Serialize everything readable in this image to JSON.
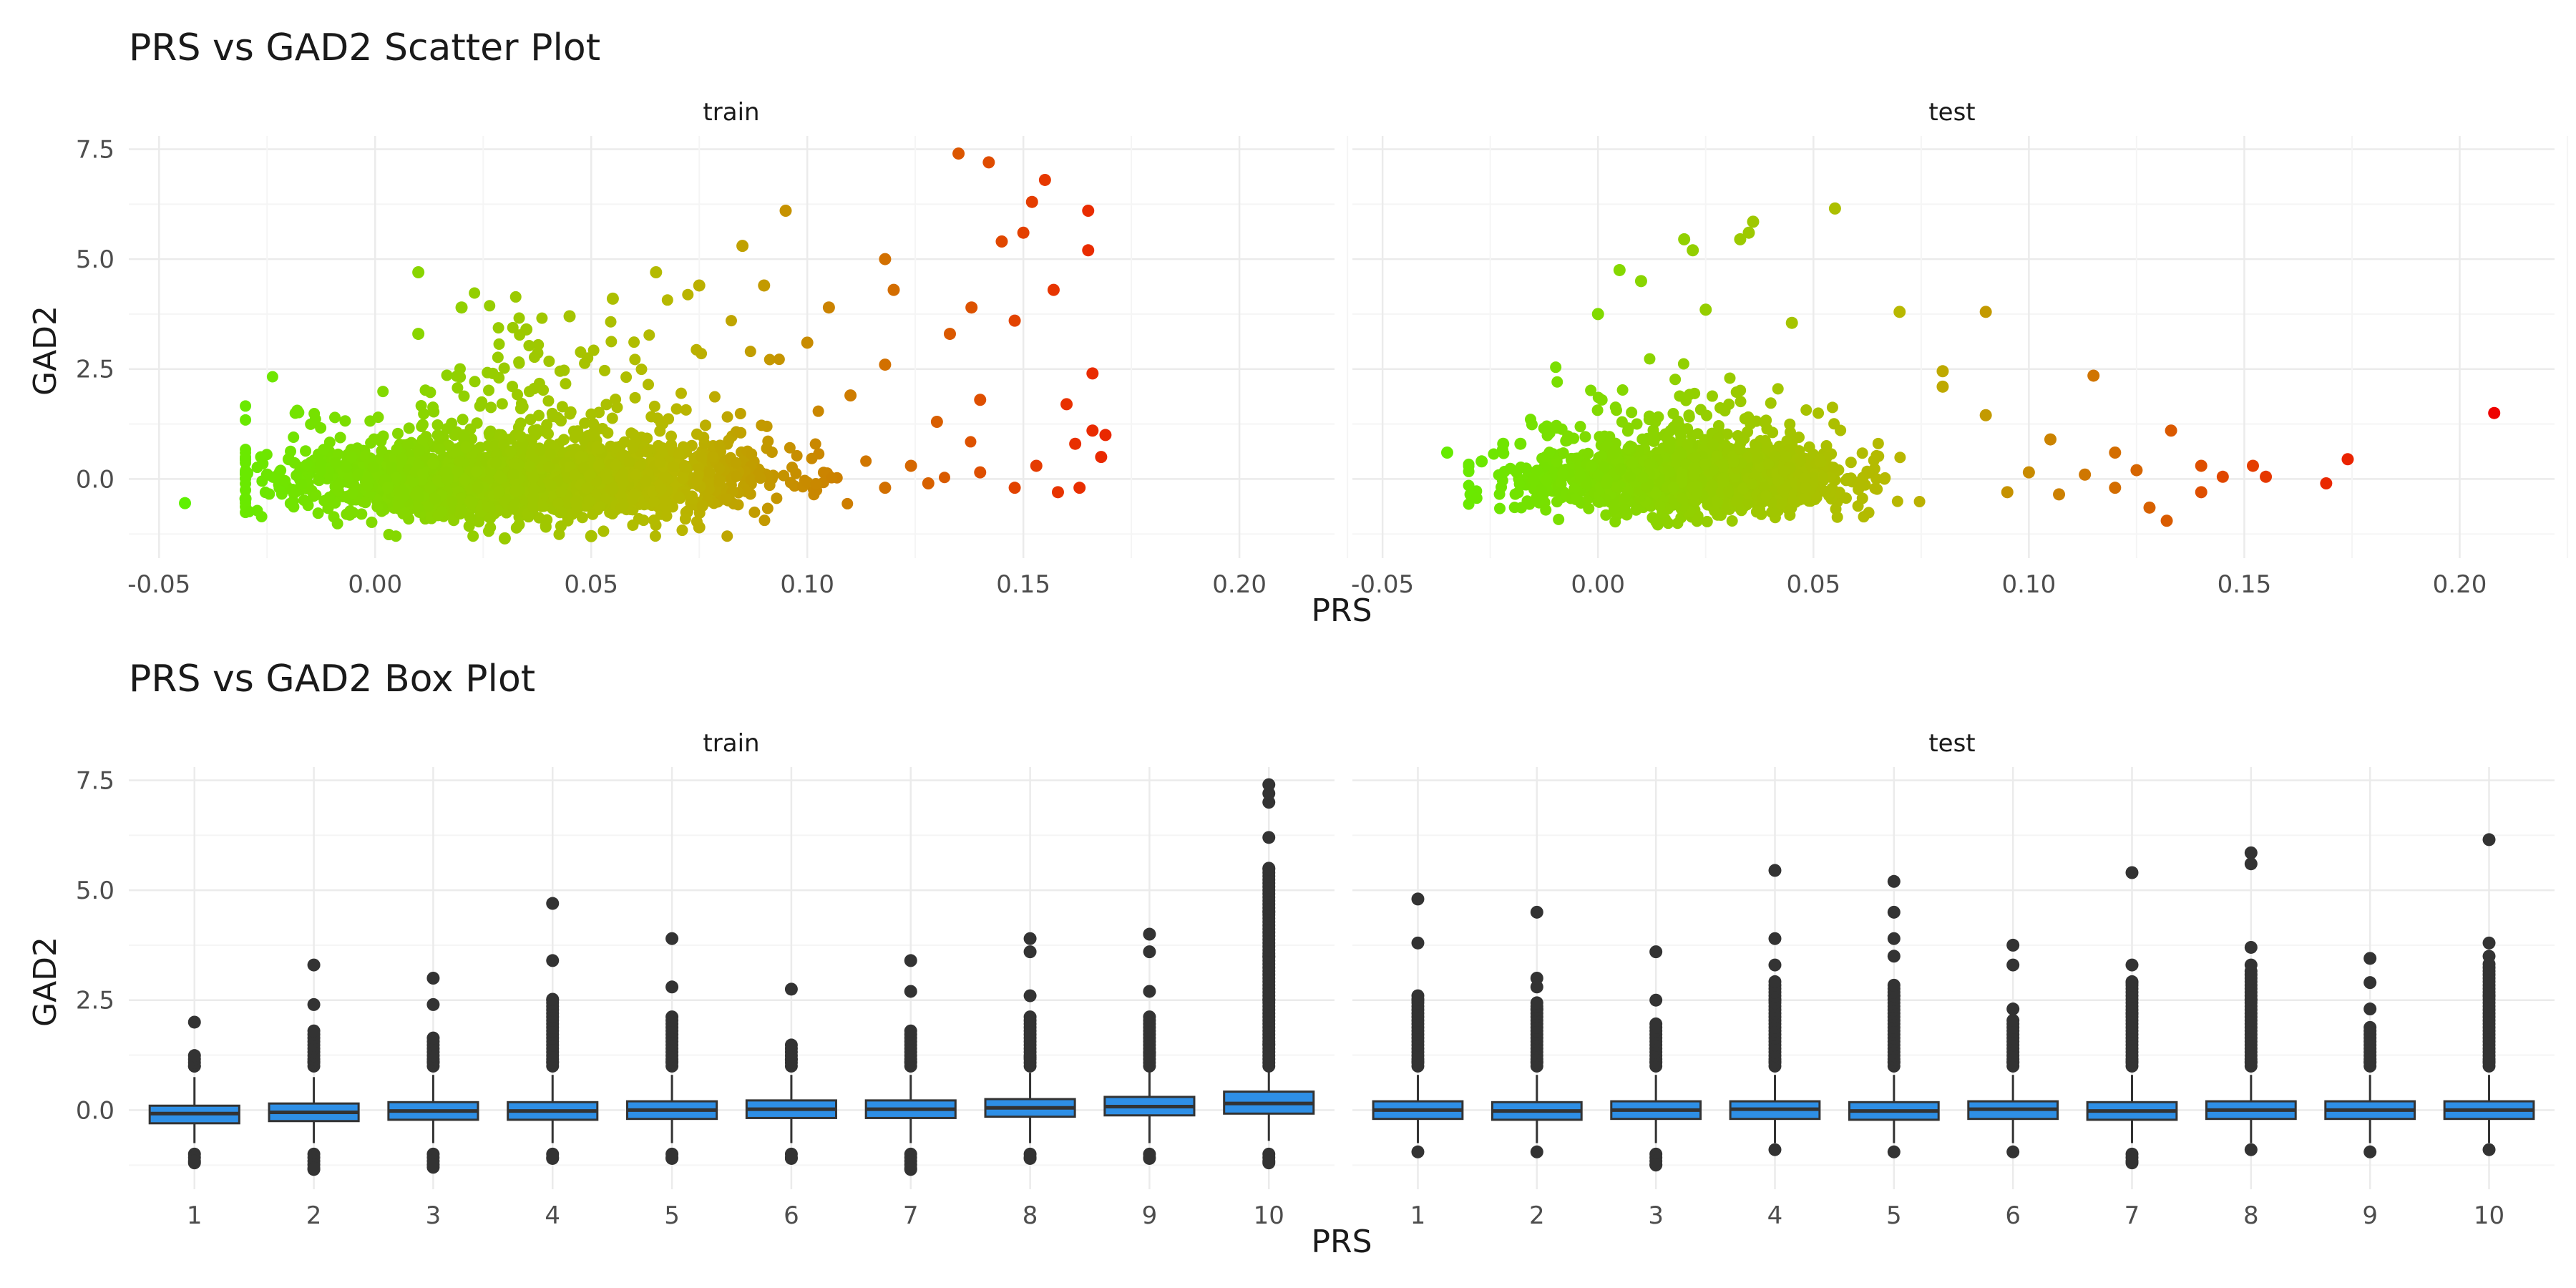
{
  "colors": {
    "background": "#ffffff",
    "grid_major": "#ebebeb",
    "grid_minor": "#f5f5f5",
    "axis_text": "#4d4d4d",
    "title_text": "#1a1a1a",
    "box_fill": "#2e8fe6",
    "box_stroke": "#333333",
    "outlier": "#333333",
    "gradient_low": "#5ef000",
    "gradient_mid": "#b8b800",
    "gradient_high": "#e83200",
    "gradient_max": "#ee0000"
  },
  "chart_data": [
    {
      "type": "scatter",
      "title": "PRS vs GAD2 Scatter Plot",
      "xlabel": "PRS",
      "ylabel": "GAD2",
      "panels": [
        "train",
        "test"
      ],
      "xlim": [
        -0.057,
        0.222
      ],
      "ylim": [
        -1.8,
        7.8
      ],
      "x_ticks": [
        -0.05,
        0.0,
        0.05,
        0.1,
        0.15,
        0.2
      ],
      "x_tick_labels": [
        "-0.05",
        "0.00",
        "0.05",
        "0.10",
        "0.15",
        "0.20"
      ],
      "y_ticks": [
        0.0,
        2.5,
        5.0,
        7.5
      ],
      "y_tick_labels": [
        "0.0",
        "2.5",
        "5.0",
        "7.5"
      ],
      "color_mapping": "point colour encodes PRS (green low → orange/red high)",
      "grid": true,
      "dense_core": {
        "train": {
          "x_mean": 0.035,
          "x_sd": 0.027,
          "y_mean": 0.0,
          "y_sd": 0.42
        },
        "test": {
          "x_mean": 0.02,
          "x_sd": 0.018,
          "y_mean": 0.0,
          "y_sd": 0.38
        }
      },
      "outliers": {
        "train": [
          [
            -0.044,
            -0.55
          ],
          [
            -0.03,
            -0.45
          ],
          [
            -0.025,
            0.1
          ],
          [
            -0.02,
            0.45
          ],
          [
            0.01,
            4.7
          ],
          [
            0.02,
            3.9
          ],
          [
            0.01,
            3.3
          ],
          [
            0.035,
            3.4
          ],
          [
            0.045,
            3.7
          ],
          [
            0.055,
            4.1
          ],
          [
            0.065,
            4.7
          ],
          [
            0.075,
            4.4
          ],
          [
            0.085,
            5.3
          ],
          [
            0.09,
            4.4
          ],
          [
            0.095,
            6.1
          ],
          [
            0.1,
            3.1
          ],
          [
            0.105,
            3.9
          ],
          [
            0.11,
            1.9
          ],
          [
            0.118,
            5.0
          ],
          [
            0.12,
            4.3
          ],
          [
            0.118,
            2.6
          ],
          [
            0.13,
            1.3
          ],
          [
            0.133,
            3.3
          ],
          [
            0.135,
            7.4
          ],
          [
            0.138,
            3.9
          ],
          [
            0.14,
            1.8
          ],
          [
            0.142,
            7.2
          ],
          [
            0.145,
            5.4
          ],
          [
            0.148,
            3.6
          ],
          [
            0.15,
            5.6
          ],
          [
            0.152,
            6.3
          ],
          [
            0.155,
            6.8
          ],
          [
            0.157,
            4.3
          ],
          [
            0.16,
            1.7
          ],
          [
            0.162,
            0.8
          ],
          [
            0.165,
            6.1
          ],
          [
            0.165,
            5.2
          ],
          [
            0.166,
            2.4
          ],
          [
            0.168,
            0.5
          ],
          [
            0.169,
            1.0
          ],
          [
            0.166,
            1.1
          ],
          [
            0.153,
            0.3
          ],
          [
            0.158,
            -0.3
          ],
          [
            0.163,
            -0.2
          ],
          [
            0.148,
            -0.2
          ],
          [
            0.14,
            0.15
          ],
          [
            0.128,
            -0.1
          ],
          [
            0.124,
            0.3
          ],
          [
            0.118,
            -0.2
          ],
          [
            0.075,
            -1.1
          ],
          [
            0.05,
            -1.3
          ],
          [
            0.03,
            -1.35
          ]
        ],
        "test": [
          [
            -0.035,
            0.6
          ],
          [
            -0.027,
            0.4
          ],
          [
            -0.022,
            0.8
          ],
          [
            -0.018,
            0.8
          ],
          [
            0.005,
            4.75
          ],
          [
            0.01,
            4.5
          ],
          [
            0.02,
            5.45
          ],
          [
            0.022,
            5.2
          ],
          [
            0.035,
            5.6
          ],
          [
            0.036,
            5.85
          ],
          [
            0.033,
            5.45
          ],
          [
            0.055,
            6.15
          ],
          [
            0.0,
            3.75
          ],
          [
            0.025,
            3.85
          ],
          [
            0.045,
            3.55
          ],
          [
            0.07,
            3.8
          ],
          [
            0.09,
            3.8
          ],
          [
            0.08,
            2.45
          ],
          [
            0.08,
            2.1
          ],
          [
            0.115,
            2.35
          ],
          [
            0.09,
            1.45
          ],
          [
            0.105,
            0.9
          ],
          [
            0.12,
            0.6
          ],
          [
            0.125,
            0.2
          ],
          [
            0.128,
            -0.65
          ],
          [
            0.132,
            -0.95
          ],
          [
            0.133,
            1.1
          ],
          [
            0.14,
            0.3
          ],
          [
            0.14,
            -0.3
          ],
          [
            0.145,
            0.05
          ],
          [
            0.152,
            0.3
          ],
          [
            0.155,
            0.05
          ],
          [
            0.169,
            -0.1
          ],
          [
            0.174,
            0.45
          ],
          [
            0.208,
            1.5
          ],
          [
            0.12,
            -0.2
          ],
          [
            0.113,
            0.1
          ],
          [
            0.107,
            -0.35
          ],
          [
            0.1,
            0.15
          ],
          [
            0.095,
            -0.3
          ]
        ]
      }
    },
    {
      "type": "box",
      "title": "PRS vs GAD2 Box Plot",
      "xlabel": "PRS",
      "ylabel": "GAD2",
      "panels": [
        "train",
        "test"
      ],
      "categories": [
        "1",
        "2",
        "3",
        "4",
        "5",
        "6",
        "7",
        "8",
        "9",
        "10"
      ],
      "ylim": [
        -1.8,
        7.8
      ],
      "y_ticks": [
        0.0,
        2.5,
        5.0,
        7.5
      ],
      "y_tick_labels": [
        "0.0",
        "2.5",
        "5.0",
        "7.5"
      ],
      "grid": true,
      "series": [
        {
          "name": "train",
          "boxes": [
            {
              "q1": -0.3,
              "median": -0.08,
              "q3": 0.1,
              "whisker_low": -0.75,
              "whisker_high": 0.75
            },
            {
              "q1": -0.25,
              "median": -0.05,
              "q3": 0.15,
              "whisker_low": -0.75,
              "whisker_high": 0.75
            },
            {
              "q1": -0.22,
              "median": -0.02,
              "q3": 0.18,
              "whisker_low": -0.75,
              "whisker_high": 0.8
            },
            {
              "q1": -0.22,
              "median": -0.02,
              "q3": 0.18,
              "whisker_low": -0.75,
              "whisker_high": 0.8
            },
            {
              "q1": -0.2,
              "median": 0.0,
              "q3": 0.2,
              "whisker_low": -0.75,
              "whisker_high": 0.8
            },
            {
              "q1": -0.18,
              "median": 0.02,
              "q3": 0.22,
              "whisker_low": -0.75,
              "whisker_high": 0.8
            },
            {
              "q1": -0.18,
              "median": 0.02,
              "q3": 0.22,
              "whisker_low": -0.75,
              "whisker_high": 0.8
            },
            {
              "q1": -0.15,
              "median": 0.05,
              "q3": 0.25,
              "whisker_low": -0.75,
              "whisker_high": 0.85
            },
            {
              "q1": -0.12,
              "median": 0.08,
              "q3": 0.3,
              "whisker_low": -0.75,
              "whisker_high": 0.95
            },
            {
              "q1": -0.08,
              "median": 0.15,
              "q3": 0.42,
              "whisker_low": -0.7,
              "whisker_high": 1.1
            }
          ],
          "outliers": [
            [
              -1.2,
              1.0,
              2.0
            ],
            [
              -1.35,
              1.1,
              2.4,
              3.3
            ],
            [
              -1.3,
              1.1,
              2.4,
              3.0
            ],
            [
              -1.1,
              1.1,
              2.5,
              3.4,
              4.7
            ],
            [
              -1.1,
              1.1,
              2.8,
              3.9
            ],
            [
              -1.1,
              1.15,
              2.75
            ],
            [
              -1.35,
              1.1,
              2.7,
              3.4
            ],
            [
              -1.1,
              1.2,
              2.6,
              3.6,
              3.9
            ],
            [
              -1.1,
              1.3,
              2.7,
              3.6,
              4.0
            ],
            [
              -1.2,
              1.5,
              2.5,
              3.5,
              4.5,
              5.5,
              6.2,
              7.0,
              7.2,
              7.4
            ]
          ]
        },
        {
          "name": "test",
          "boxes": [
            {
              "q1": -0.2,
              "median": 0.0,
              "q3": 0.2,
              "whisker_low": -0.75,
              "whisker_high": 0.8
            },
            {
              "q1": -0.22,
              "median": -0.02,
              "q3": 0.18,
              "whisker_low": -0.75,
              "whisker_high": 0.8
            },
            {
              "q1": -0.2,
              "median": 0.0,
              "q3": 0.2,
              "whisker_low": -0.75,
              "whisker_high": 0.8
            },
            {
              "q1": -0.2,
              "median": 0.02,
              "q3": 0.2,
              "whisker_low": -0.75,
              "whisker_high": 0.8
            },
            {
              "q1": -0.22,
              "median": -0.02,
              "q3": 0.18,
              "whisker_low": -0.75,
              "whisker_high": 0.8
            },
            {
              "q1": -0.2,
              "median": 0.02,
              "q3": 0.2,
              "whisker_low": -0.75,
              "whisker_high": 0.8
            },
            {
              "q1": -0.22,
              "median": -0.02,
              "q3": 0.18,
              "whisker_low": -0.75,
              "whisker_high": 0.8
            },
            {
              "q1": -0.2,
              "median": 0.0,
              "q3": 0.2,
              "whisker_low": -0.75,
              "whisker_high": 0.8
            },
            {
              "q1": -0.2,
              "median": 0.0,
              "q3": 0.2,
              "whisker_low": -0.75,
              "whisker_high": 0.8
            },
            {
              "q1": -0.2,
              "median": 0.0,
              "q3": 0.2,
              "whisker_low": -0.75,
              "whisker_high": 0.8
            }
          ],
          "outliers": [
            [
              -0.95,
              1.1,
              2.5,
              3.8,
              4.8
            ],
            [
              -0.95,
              1.1,
              2.3,
              2.8,
              3.0,
              4.5
            ],
            [
              -1.25,
              1.1,
              2.5,
              3.6
            ],
            [
              -0.9,
              1.1,
              2.5,
              3.3,
              3.9,
              5.45
            ],
            [
              -0.95,
              1.1,
              2.6,
              3.5,
              3.9,
              4.5,
              5.2
            ],
            [
              -0.95,
              1.1,
              2.3,
              3.3,
              3.75
            ],
            [
              -1.2,
              1.1,
              2.2,
              2.9,
              3.3,
              5.4
            ],
            [
              -0.9,
              1.1,
              2.5,
              3.3,
              3.7,
              5.6,
              5.85
            ],
            [
              -0.95,
              1.1,
              2.3,
              2.9,
              3.45
            ],
            [
              -0.9,
              1.1,
              2.6,
              3.5,
              3.8,
              6.15
            ]
          ]
        }
      ]
    }
  ]
}
